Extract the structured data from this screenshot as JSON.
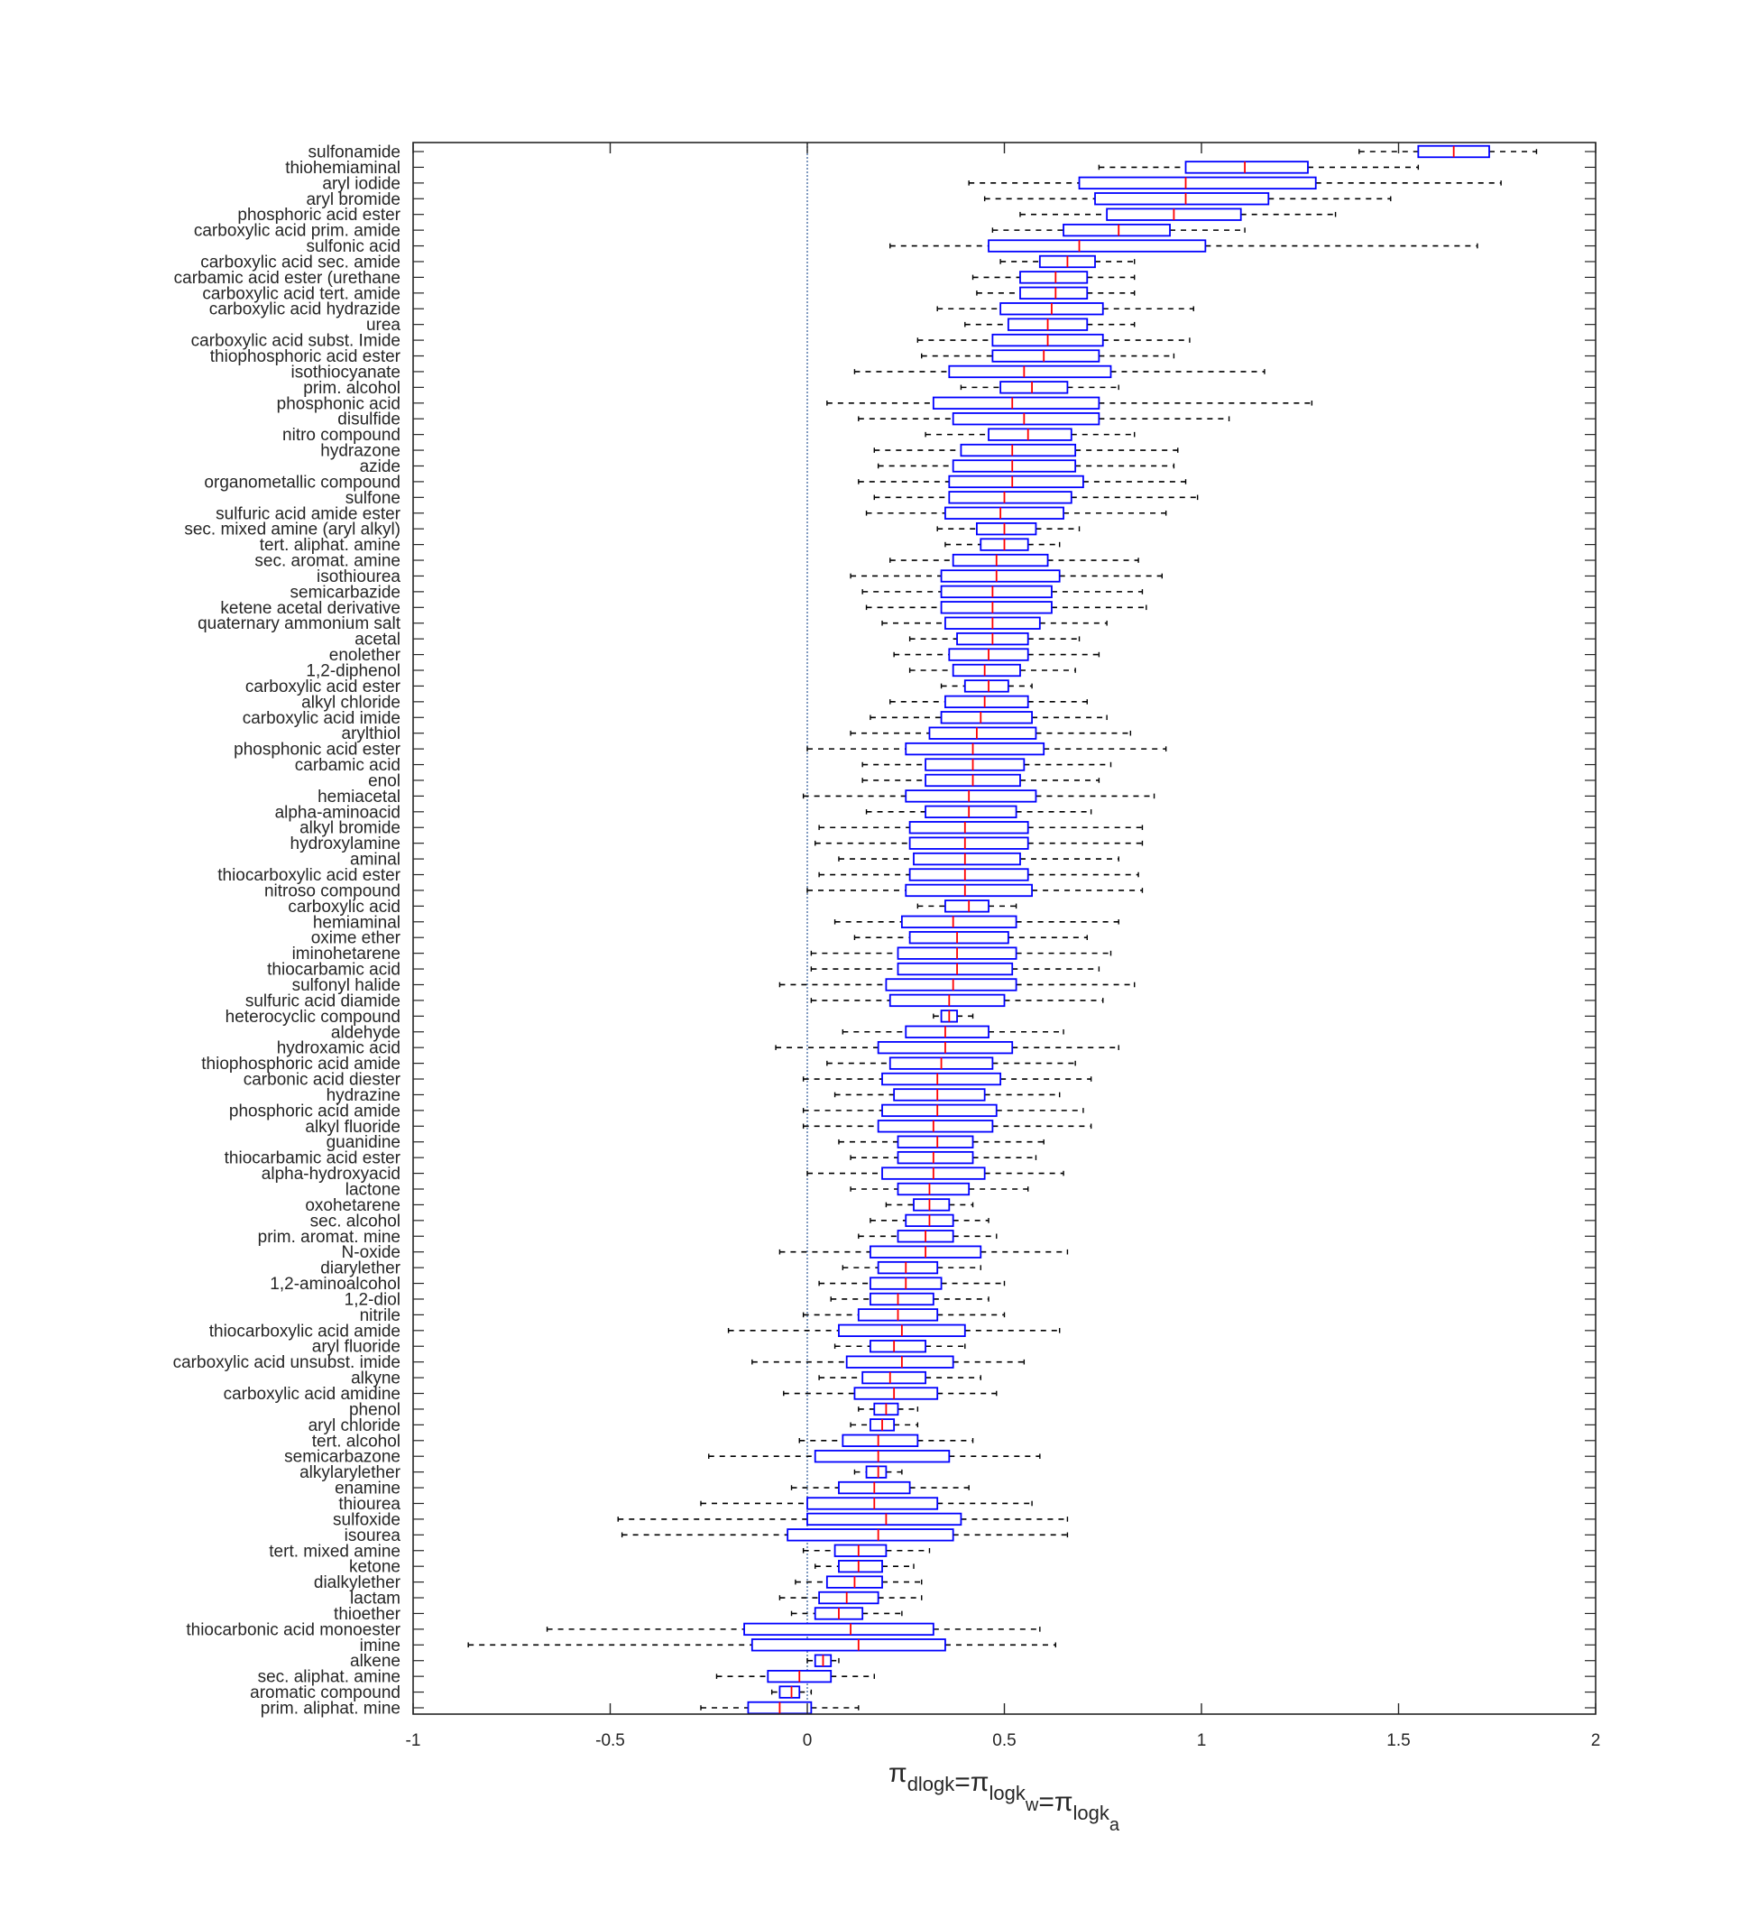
{
  "chart_data": {
    "type": "boxplot",
    "orientation": "horizontal",
    "xlim": [
      -1,
      2
    ],
    "xticks": [
      -1,
      -0.5,
      0,
      0.5,
      1,
      1.5,
      2
    ],
    "xtick_labels": [
      "-1",
      "-0.5",
      "0",
      "0.5",
      "1",
      "1.5",
      "2"
    ],
    "xlabel": {
      "parts": [
        {
          "text": "π",
          "sub": "dlogk"
        },
        {
          "text": "=π",
          "sub": "logk",
          "subsub": "w"
        },
        {
          "text": "=π",
          "sub": "logk",
          "subsub": "a"
        }
      ]
    },
    "reference_line_x": 0,
    "colors": {
      "box": "#0000ff",
      "median": "#ff0000",
      "whisker": "#000000",
      "reference": "#4a6fa5",
      "axes": "#262626"
    },
    "categories": [
      {
        "label": "sulfonamide",
        "whislo": 1.4,
        "q1": 1.55,
        "med": 1.64,
        "q3": 1.73,
        "whishi": 1.85
      },
      {
        "label": "thiohemiaminal",
        "whislo": 0.74,
        "q1": 0.96,
        "med": 1.11,
        "q3": 1.27,
        "whishi": 1.55
      },
      {
        "label": "aryl iodide",
        "whislo": 0.41,
        "q1": 0.69,
        "med": 0.96,
        "q3": 1.29,
        "whishi": 1.76
      },
      {
        "label": "aryl bromide",
        "whislo": 0.45,
        "q1": 0.73,
        "med": 0.96,
        "q3": 1.17,
        "whishi": 1.48
      },
      {
        "label": "phosphoric acid ester",
        "whislo": 0.54,
        "q1": 0.76,
        "med": 0.93,
        "q3": 1.1,
        "whishi": 1.34
      },
      {
        "label": "carboxylic acid prim. amide",
        "whislo": 0.47,
        "q1": 0.65,
        "med": 0.79,
        "q3": 0.92,
        "whishi": 1.11
      },
      {
        "label": "sulfonic acid",
        "whislo": 0.21,
        "q1": 0.46,
        "med": 0.69,
        "q3": 1.01,
        "whishi": 1.7
      },
      {
        "label": "carboxylic acid sec. amide",
        "whislo": 0.49,
        "q1": 0.59,
        "med": 0.66,
        "q3": 0.73,
        "whishi": 0.83
      },
      {
        "label": "carbamic acid ester (urethane",
        "whislo": 0.42,
        "q1": 0.54,
        "med": 0.63,
        "q3": 0.71,
        "whishi": 0.83
      },
      {
        "label": "carboxylic acid tert. amide",
        "whislo": 0.43,
        "q1": 0.54,
        "med": 0.63,
        "q3": 0.71,
        "whishi": 0.83
      },
      {
        "label": "carboxylic acid hydrazide",
        "whislo": 0.33,
        "q1": 0.49,
        "med": 0.62,
        "q3": 0.75,
        "whishi": 0.98
      },
      {
        "label": "urea",
        "whislo": 0.4,
        "q1": 0.51,
        "med": 0.61,
        "q3": 0.71,
        "whishi": 0.83
      },
      {
        "label": "carboxylic acid subst. Imide",
        "whislo": 0.28,
        "q1": 0.47,
        "med": 0.61,
        "q3": 0.75,
        "whishi": 0.97
      },
      {
        "label": "thiophosphoric acid ester",
        "whislo": 0.29,
        "q1": 0.47,
        "med": 0.6,
        "q3": 0.74,
        "whishi": 0.93
      },
      {
        "label": "isothiocyanate",
        "whislo": 0.12,
        "q1": 0.36,
        "med": 0.55,
        "q3": 0.77,
        "whishi": 1.16
      },
      {
        "label": "prim. alcohol",
        "whislo": 0.39,
        "q1": 0.49,
        "med": 0.57,
        "q3": 0.66,
        "whishi": 0.79
      },
      {
        "label": "phosphonic acid",
        "whislo": 0.05,
        "q1": 0.32,
        "med": 0.52,
        "q3": 0.74,
        "whishi": 1.28
      },
      {
        "label": "disulfide",
        "whislo": 0.13,
        "q1": 0.37,
        "med": 0.55,
        "q3": 0.74,
        "whishi": 1.07
      },
      {
        "label": "nitro compound",
        "whislo": 0.3,
        "q1": 0.46,
        "med": 0.56,
        "q3": 0.67,
        "whishi": 0.83
      },
      {
        "label": "hydrazone",
        "whislo": 0.17,
        "q1": 0.39,
        "med": 0.52,
        "q3": 0.68,
        "whishi": 0.94
      },
      {
        "label": "azide",
        "whislo": 0.18,
        "q1": 0.37,
        "med": 0.52,
        "q3": 0.68,
        "whishi": 0.93
      },
      {
        "label": "organometallic compound",
        "whislo": 0.13,
        "q1": 0.36,
        "med": 0.52,
        "q3": 0.7,
        "whishi": 0.96
      },
      {
        "label": "sulfone",
        "whislo": 0.17,
        "q1": 0.36,
        "med": 0.5,
        "q3": 0.67,
        "whishi": 0.99
      },
      {
        "label": "sulfuric acid amide ester",
        "whislo": 0.15,
        "q1": 0.35,
        "med": 0.49,
        "q3": 0.65,
        "whishi": 0.91
      },
      {
        "label": "sec. mixed amine (aryl alkyl)",
        "whislo": 0.33,
        "q1": 0.43,
        "med": 0.5,
        "q3": 0.58,
        "whishi": 0.69
      },
      {
        "label": "tert. aliphat. amine",
        "whislo": 0.35,
        "q1": 0.44,
        "med": 0.5,
        "q3": 0.56,
        "whishi": 0.64
      },
      {
        "label": "sec. aromat. amine",
        "whislo": 0.21,
        "q1": 0.37,
        "med": 0.48,
        "q3": 0.61,
        "whishi": 0.84
      },
      {
        "label": "isothiourea",
        "whislo": 0.11,
        "q1": 0.34,
        "med": 0.48,
        "q3": 0.64,
        "whishi": 0.9
      },
      {
        "label": "semicarbazide",
        "whislo": 0.14,
        "q1": 0.34,
        "med": 0.47,
        "q3": 0.62,
        "whishi": 0.85
      },
      {
        "label": "ketene acetal derivative",
        "whislo": 0.15,
        "q1": 0.34,
        "med": 0.47,
        "q3": 0.62,
        "whishi": 0.86
      },
      {
        "label": "quaternary ammonium salt",
        "whislo": 0.19,
        "q1": 0.35,
        "med": 0.47,
        "q3": 0.59,
        "whishi": 0.76
      },
      {
        "label": "acetal",
        "whislo": 0.26,
        "q1": 0.38,
        "med": 0.47,
        "q3": 0.56,
        "whishi": 0.69
      },
      {
        "label": "enolether",
        "whislo": 0.22,
        "q1": 0.36,
        "med": 0.46,
        "q3": 0.56,
        "whishi": 0.74
      },
      {
        "label": "1,2-diphenol",
        "whislo": 0.26,
        "q1": 0.37,
        "med": 0.45,
        "q3": 0.54,
        "whishi": 0.68
      },
      {
        "label": "carboxylic acid ester",
        "whislo": 0.34,
        "q1": 0.4,
        "med": 0.46,
        "q3": 0.51,
        "whishi": 0.57
      },
      {
        "label": "alkyl chloride",
        "whislo": 0.21,
        "q1": 0.35,
        "med": 0.45,
        "q3": 0.56,
        "whishi": 0.71
      },
      {
        "label": "carboxylic acid imide",
        "whislo": 0.16,
        "q1": 0.34,
        "med": 0.44,
        "q3": 0.57,
        "whishi": 0.76
      },
      {
        "label": "arylthiol",
        "whislo": 0.11,
        "q1": 0.31,
        "med": 0.43,
        "q3": 0.58,
        "whishi": 0.82
      },
      {
        "label": "phosphonic acid ester",
        "whislo": 0.0,
        "q1": 0.25,
        "med": 0.42,
        "q3": 0.6,
        "whishi": 0.91
      },
      {
        "label": "carbamic acid",
        "whislo": 0.14,
        "q1": 0.3,
        "med": 0.42,
        "q3": 0.55,
        "whishi": 0.77
      },
      {
        "label": "enol",
        "whislo": 0.14,
        "q1": 0.3,
        "med": 0.42,
        "q3": 0.54,
        "whishi": 0.74
      },
      {
        "label": "hemiacetal",
        "whislo": -0.01,
        "q1": 0.25,
        "med": 0.41,
        "q3": 0.58,
        "whishi": 0.88
      },
      {
        "label": "alpha-aminoacid",
        "whislo": 0.15,
        "q1": 0.3,
        "med": 0.41,
        "q3": 0.53,
        "whishi": 0.72
      },
      {
        "label": "alkyl bromide",
        "whislo": 0.03,
        "q1": 0.26,
        "med": 0.4,
        "q3": 0.56,
        "whishi": 0.85
      },
      {
        "label": "hydroxylamine",
        "whislo": 0.02,
        "q1": 0.26,
        "med": 0.4,
        "q3": 0.56,
        "whishi": 0.85
      },
      {
        "label": "aminal",
        "whislo": 0.08,
        "q1": 0.27,
        "med": 0.4,
        "q3": 0.54,
        "whishi": 0.79
      },
      {
        "label": "thiocarboxylic acid ester",
        "whislo": 0.03,
        "q1": 0.26,
        "med": 0.4,
        "q3": 0.56,
        "whishi": 0.84
      },
      {
        "label": "nitroso compound",
        "whislo": 0.0,
        "q1": 0.25,
        "med": 0.4,
        "q3": 0.57,
        "whishi": 0.85
      },
      {
        "label": "carboxylic acid",
        "whislo": 0.28,
        "q1": 0.35,
        "med": 0.41,
        "q3": 0.46,
        "whishi": 0.53
      },
      {
        "label": "hemiaminal",
        "whislo": 0.07,
        "q1": 0.24,
        "med": 0.37,
        "q3": 0.53,
        "whishi": 0.79
      },
      {
        "label": "oxime ether",
        "whislo": 0.12,
        "q1": 0.26,
        "med": 0.38,
        "q3": 0.51,
        "whishi": 0.71
      },
      {
        "label": "iminohetarene",
        "whislo": 0.01,
        "q1": 0.23,
        "med": 0.38,
        "q3": 0.53,
        "whishi": 0.77
      },
      {
        "label": "thiocarbamic acid",
        "whislo": 0.01,
        "q1": 0.23,
        "med": 0.38,
        "q3": 0.52,
        "whishi": 0.74
      },
      {
        "label": "sulfonyl halide",
        "whislo": -0.07,
        "q1": 0.2,
        "med": 0.37,
        "q3": 0.53,
        "whishi": 0.83
      },
      {
        "label": "sulfuric acid diamide",
        "whislo": 0.01,
        "q1": 0.21,
        "med": 0.36,
        "q3": 0.5,
        "whishi": 0.75
      },
      {
        "label": "heterocyclic compound",
        "whislo": 0.32,
        "q1": 0.34,
        "med": 0.36,
        "q3": 0.38,
        "whishi": 0.42
      },
      {
        "label": "aldehyde",
        "whislo": 0.09,
        "q1": 0.25,
        "med": 0.35,
        "q3": 0.46,
        "whishi": 0.65
      },
      {
        "label": "hydroxamic acid",
        "whislo": -0.08,
        "q1": 0.18,
        "med": 0.35,
        "q3": 0.52,
        "whishi": 0.79
      },
      {
        "label": "thiophosphoric acid amide",
        "whislo": 0.05,
        "q1": 0.21,
        "med": 0.34,
        "q3": 0.47,
        "whishi": 0.68
      },
      {
        "label": "carbonic acid diester",
        "whislo": -0.01,
        "q1": 0.19,
        "med": 0.33,
        "q3": 0.49,
        "whishi": 0.72
      },
      {
        "label": "hydrazine",
        "whislo": 0.07,
        "q1": 0.22,
        "med": 0.33,
        "q3": 0.45,
        "whishi": 0.64
      },
      {
        "label": "phosphoric acid amide",
        "whislo": -0.01,
        "q1": 0.19,
        "med": 0.33,
        "q3": 0.48,
        "whishi": 0.7
      },
      {
        "label": "alkyl fluoride",
        "whislo": -0.01,
        "q1": 0.18,
        "med": 0.32,
        "q3": 0.47,
        "whishi": 0.72
      },
      {
        "label": "guanidine",
        "whislo": 0.08,
        "q1": 0.23,
        "med": 0.33,
        "q3": 0.42,
        "whishi": 0.6
      },
      {
        "label": "thiocarbamic acid ester",
        "whislo": 0.11,
        "q1": 0.23,
        "med": 0.32,
        "q3": 0.42,
        "whishi": 0.58
      },
      {
        "label": "alpha-hydroxyacid",
        "whislo": 0.0,
        "q1": 0.19,
        "med": 0.32,
        "q3": 0.45,
        "whishi": 0.65
      },
      {
        "label": "lactone",
        "whislo": 0.11,
        "q1": 0.23,
        "med": 0.31,
        "q3": 0.41,
        "whishi": 0.56
      },
      {
        "label": "oxohetarene",
        "whislo": 0.2,
        "q1": 0.27,
        "med": 0.31,
        "q3": 0.36,
        "whishi": 0.42
      },
      {
        "label": "sec. alcohol",
        "whislo": 0.16,
        "q1": 0.25,
        "med": 0.31,
        "q3": 0.37,
        "whishi": 0.46
      },
      {
        "label": "prim. aromat. mine",
        "whislo": 0.13,
        "q1": 0.23,
        "med": 0.3,
        "q3": 0.37,
        "whishi": 0.48
      },
      {
        "label": "N-oxide",
        "whislo": -0.07,
        "q1": 0.16,
        "med": 0.3,
        "q3": 0.44,
        "whishi": 0.66
      },
      {
        "label": "diarylether",
        "whislo": 0.09,
        "q1": 0.18,
        "med": 0.25,
        "q3": 0.33,
        "whishi": 0.44
      },
      {
        "label": "1,2-aminoalcohol",
        "whislo": 0.03,
        "q1": 0.16,
        "med": 0.25,
        "q3": 0.34,
        "whishi": 0.5
      },
      {
        "label": "1,2-diol",
        "whislo": 0.06,
        "q1": 0.16,
        "med": 0.23,
        "q3": 0.32,
        "whishi": 0.46
      },
      {
        "label": "nitrile",
        "whislo": -0.01,
        "q1": 0.13,
        "med": 0.23,
        "q3": 0.33,
        "whishi": 0.5
      },
      {
        "label": "thiocarboxylic acid amide",
        "whislo": -0.2,
        "q1": 0.08,
        "med": 0.24,
        "q3": 0.4,
        "whishi": 0.64
      },
      {
        "label": "aryl fluoride",
        "whislo": 0.07,
        "q1": 0.16,
        "med": 0.22,
        "q3": 0.3,
        "whishi": 0.4
      },
      {
        "label": "carboxylic acid unsubst. imide",
        "whislo": -0.14,
        "q1": 0.1,
        "med": 0.24,
        "q3": 0.37,
        "whishi": 0.55
      },
      {
        "label": "alkyne",
        "whislo": 0.03,
        "q1": 0.14,
        "med": 0.21,
        "q3": 0.3,
        "whishi": 0.44
      },
      {
        "label": "carboxylic acid amidine",
        "whislo": -0.06,
        "q1": 0.12,
        "med": 0.22,
        "q3": 0.33,
        "whishi": 0.48
      },
      {
        "label": "phenol",
        "whislo": 0.13,
        "q1": 0.17,
        "med": 0.2,
        "q3": 0.23,
        "whishi": 0.28
      },
      {
        "label": "aryl chloride",
        "whislo": 0.11,
        "q1": 0.16,
        "med": 0.19,
        "q3": 0.22,
        "whishi": 0.28
      },
      {
        "label": "tert. alcohol",
        "whislo": -0.02,
        "q1": 0.09,
        "med": 0.18,
        "q3": 0.28,
        "whishi": 0.42
      },
      {
        "label": "semicarbazone",
        "whislo": -0.25,
        "q1": 0.02,
        "med": 0.18,
        "q3": 0.36,
        "whishi": 0.59
      },
      {
        "label": "alkylarylether",
        "whislo": 0.12,
        "q1": 0.15,
        "med": 0.18,
        "q3": 0.2,
        "whishi": 0.24
      },
      {
        "label": "enamine",
        "whislo": -0.04,
        "q1": 0.08,
        "med": 0.17,
        "q3": 0.26,
        "whishi": 0.41
      },
      {
        "label": "thiourea",
        "whislo": -0.27,
        "q1": 0.0,
        "med": 0.17,
        "q3": 0.33,
        "whishi": 0.57
      },
      {
        "label": "sulfoxide",
        "whislo": -0.48,
        "q1": 0.0,
        "med": 0.2,
        "q3": 0.39,
        "whishi": 0.66
      },
      {
        "label": "isourea",
        "whislo": -0.47,
        "q1": -0.05,
        "med": 0.18,
        "q3": 0.37,
        "whishi": 0.66
      },
      {
        "label": "tert. mixed amine",
        "whislo": -0.01,
        "q1": 0.07,
        "med": 0.13,
        "q3": 0.2,
        "whishi": 0.31
      },
      {
        "label": "ketone",
        "whislo": 0.02,
        "q1": 0.08,
        "med": 0.13,
        "q3": 0.19,
        "whishi": 0.27
      },
      {
        "label": "dialkylether",
        "whislo": -0.03,
        "q1": 0.05,
        "med": 0.12,
        "q3": 0.19,
        "whishi": 0.29
      },
      {
        "label": "lactam",
        "whislo": -0.07,
        "q1": 0.03,
        "med": 0.1,
        "q3": 0.18,
        "whishi": 0.29
      },
      {
        "label": "thioether",
        "whislo": -0.04,
        "q1": 0.02,
        "med": 0.08,
        "q3": 0.14,
        "whishi": 0.24
      },
      {
        "label": "thiocarbonic acid monoester",
        "whislo": -0.66,
        "q1": -0.16,
        "med": 0.11,
        "q3": 0.32,
        "whishi": 0.59
      },
      {
        "label": "imine",
        "whislo": -0.86,
        "q1": -0.14,
        "med": 0.13,
        "q3": 0.35,
        "whishi": 0.63
      },
      {
        "label": "alkene",
        "whislo": 0.0,
        "q1": 0.02,
        "med": 0.04,
        "q3": 0.06,
        "whishi": 0.08
      },
      {
        "label": "sec. aliphat. amine",
        "whislo": -0.23,
        "q1": -0.1,
        "med": -0.02,
        "q3": 0.06,
        "whishi": 0.17
      },
      {
        "label": "aromatic compound",
        "whislo": -0.09,
        "q1": -0.07,
        "med": -0.04,
        "q3": -0.02,
        "whishi": 0.01
      },
      {
        "label": "prim. aliphat. mine",
        "whislo": -0.27,
        "q1": -0.15,
        "med": -0.07,
        "q3": 0.01,
        "whishi": 0.13
      }
    ]
  }
}
